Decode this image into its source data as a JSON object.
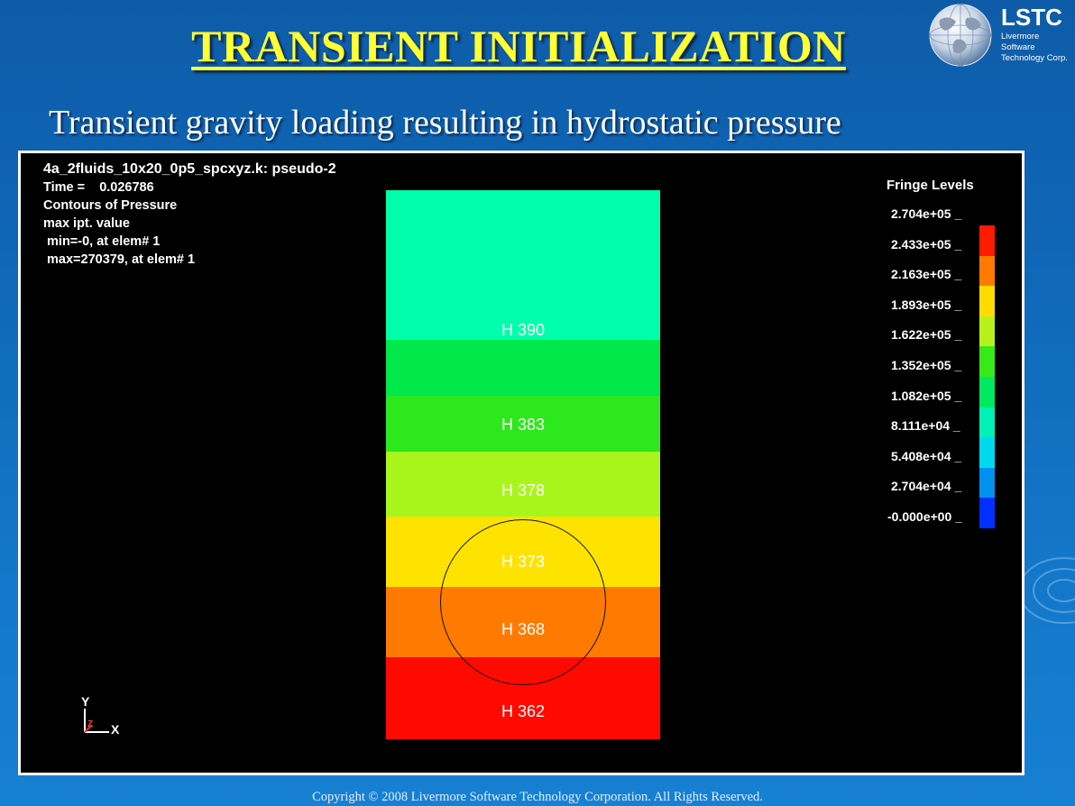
{
  "slide": {
    "title": "TRANSIENT INITIALIZATION",
    "subtitle": "Transient gravity loading resulting in hydrostatic pressure",
    "footer": "Copyright © 2008 Livermore Software Technology Corporation.  All Rights Reserved."
  },
  "logo": {
    "name": "LSTC",
    "line1": "Livermore Software",
    "line2": "Technology Corp."
  },
  "viewport": {
    "info": {
      "model": "4a_2fluids_10x20_0p5_spcxyz.k: pseudo-2",
      "time": "Time =    0.026786",
      "contours": "Contours of Pressure",
      "value_mode": "max ipt. value",
      "min": " min=-0, at elem# 1",
      "max": " max=270379, at elem# 1"
    },
    "bands": [
      {
        "color": "#00ffaa",
        "label": "H 390"
      },
      {
        "color": "#00e84a",
        "label": ""
      },
      {
        "color": "#2ce81c",
        "label": "H 383"
      },
      {
        "color": "#a8f51c",
        "label": "H 378"
      },
      {
        "color": "#ffe300",
        "label": "H 373"
      },
      {
        "color": "#ff7a00",
        "label": "H 368"
      },
      {
        "color": "#ff0a00",
        "label": "H 362"
      }
    ],
    "legend": {
      "title": "Fringe Levels",
      "labels": [
        "2.704e+05 _",
        "2.433e+05 _",
        "2.163e+05 _",
        "1.893e+05 _",
        "1.622e+05 _",
        "1.352e+05 _",
        "1.082e+05 _",
        "8.111e+04 _",
        "5.408e+04 _",
        "2.704e+04 _",
        "-0.000e+00 _"
      ],
      "colors": [
        "#ff1a00",
        "#ff7a00",
        "#ffdc00",
        "#b8f01c",
        "#38e818",
        "#00e860",
        "#00f0b8",
        "#00d8f0",
        "#0090f0",
        "#0030ff"
      ]
    },
    "axes": {
      "y": "Y",
      "x": "X",
      "z": "Z"
    }
  }
}
